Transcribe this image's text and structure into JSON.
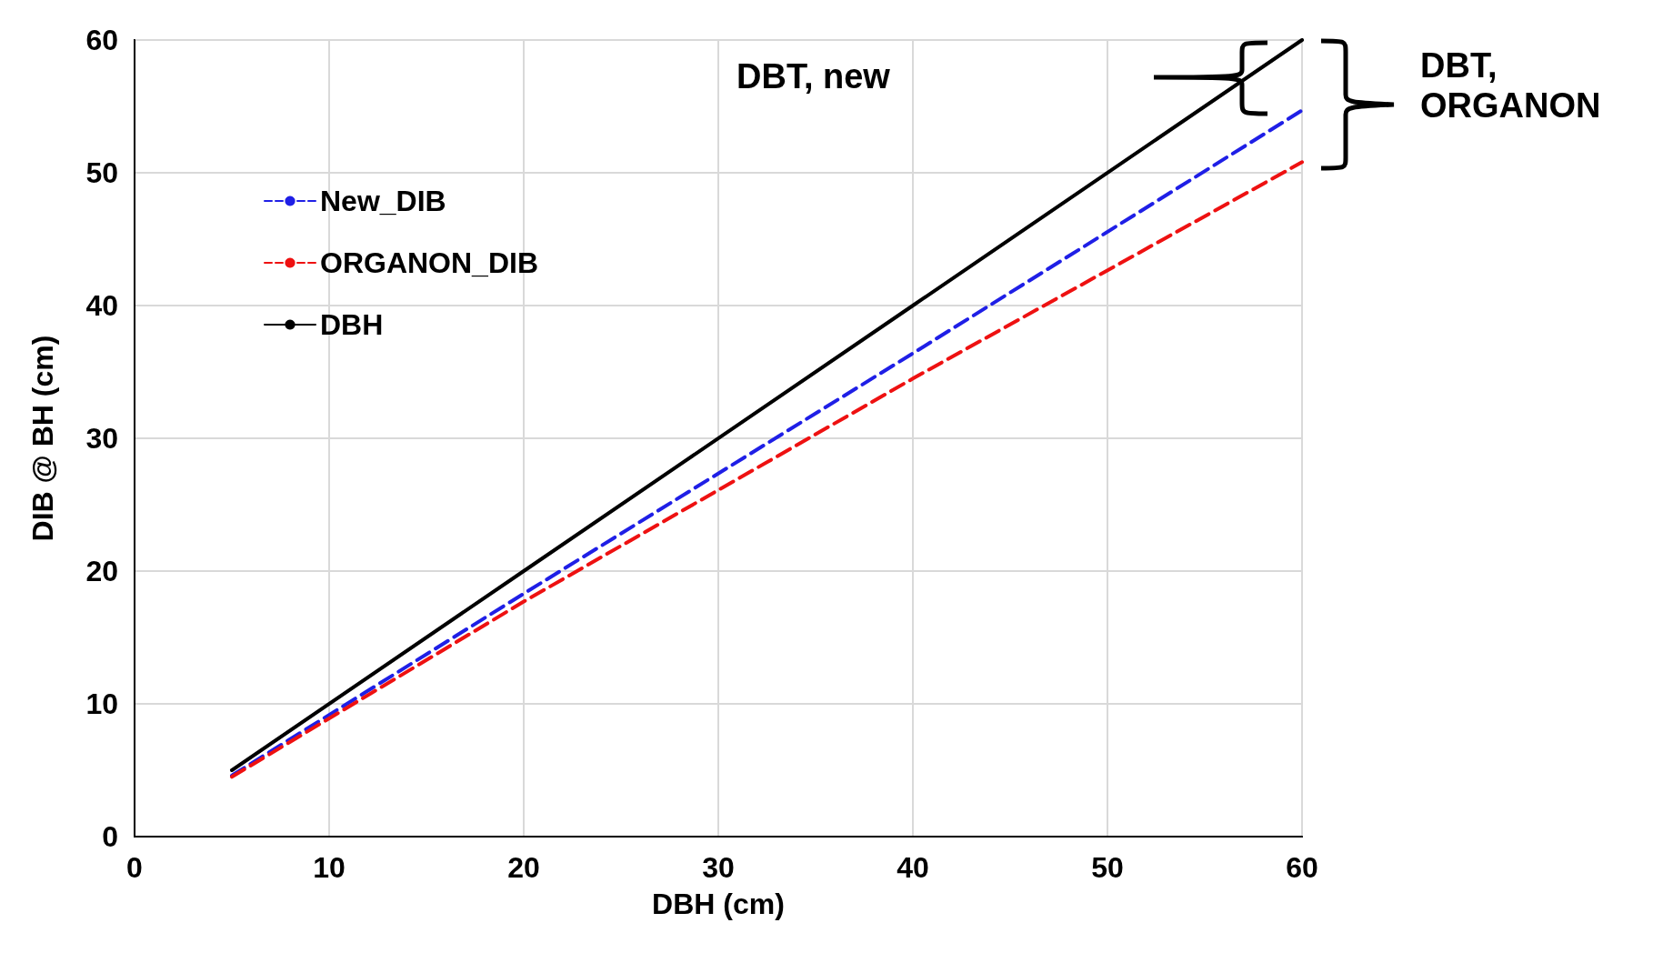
{
  "chart_data": {
    "type": "line",
    "xlabel": "DBH (cm)",
    "ylabel": "DIB @ BH (cm)",
    "xlim": [
      0,
      60
    ],
    "xticks": [
      0,
      10,
      20,
      30,
      40,
      50,
      60
    ],
    "ylim": [
      0,
      60
    ],
    "yticks": [
      0,
      10,
      20,
      30,
      40,
      50,
      60
    ],
    "grid": true,
    "legend": "top left",
    "marker": "none",
    "series": [
      {
        "name": "New_DIB",
        "color": "#1f1fe6",
        "line_style": "dashed",
        "x": [
          5,
          20,
          40,
          60
        ],
        "values": [
          4.6,
          18.3,
          36.4,
          54.7
        ]
      },
      {
        "name": "ORGANON_DIB",
        "color": "#ee1111",
        "line_style": "dashed",
        "x": [
          5,
          20,
          40,
          60
        ],
        "values": [
          4.5,
          17.7,
          34.5,
          50.8
        ]
      },
      {
        "name": "DBH",
        "color": "#000000",
        "line_style": "solid",
        "x": [
          5,
          20,
          40,
          60
        ],
        "values": [
          5,
          20,
          40,
          60
        ]
      }
    ],
    "annotations": [
      "DBT, new",
      "DBT, ORGANON"
    ]
  }
}
